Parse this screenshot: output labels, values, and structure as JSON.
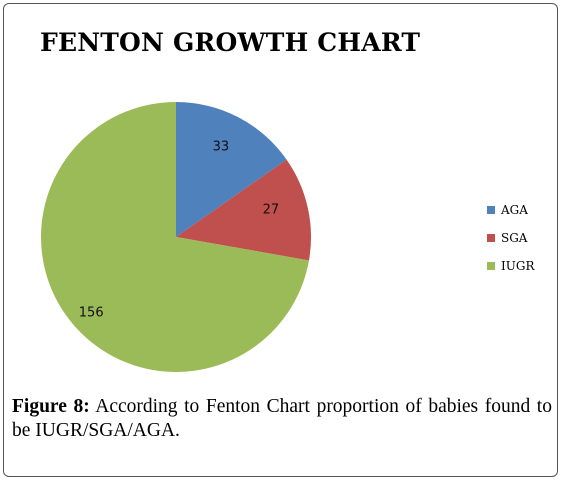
{
  "chart_data": {
    "type": "pie",
    "title": "FENTON GROWTH CHART",
    "slices": [
      {
        "label": "AGA",
        "value": 33,
        "color": "#4f81bd"
      },
      {
        "label": "SGA",
        "value": 27,
        "color": "#c0504d"
      },
      {
        "label": "IUGR",
        "value": 156,
        "color": "#9bbb59"
      }
    ],
    "legend_position": "right"
  },
  "caption": {
    "figure_label": "Figure 8:",
    "text": " According to Fenton Chart proportion of babies found to be IUGR/SGA/AGA."
  }
}
